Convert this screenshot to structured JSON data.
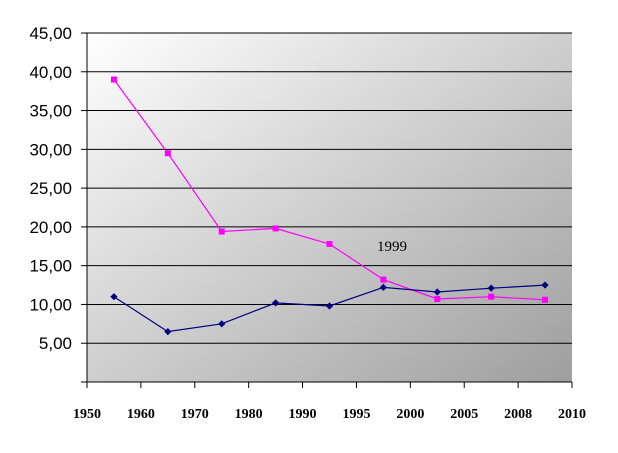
{
  "chart_data": {
    "type": "line",
    "x_tick_labels": [
      "1950",
      "1960",
      "1970",
      "1980",
      "1990",
      "1995",
      "2000",
      "2005",
      "2008",
      "2010"
    ],
    "y_tick_labels": [
      "",
      "5,00",
      "10,00",
      "15,00",
      "20,00",
      "25,00",
      "30,00",
      "35,00",
      "40,00",
      "45,00"
    ],
    "ylim": [
      0,
      45
    ],
    "grid": true,
    "legend": "none",
    "annotation": "1999",
    "series": [
      {
        "color": "#ff00ff",
        "marker": "square",
        "points": [
          {
            "x": 0.5,
            "y": 39.0
          },
          {
            "x": 1.5,
            "y": 29.5
          },
          {
            "x": 2.5,
            "y": 19.4
          },
          {
            "x": 3.5,
            "y": 19.8
          },
          {
            "x": 4.5,
            "y": 17.8
          },
          {
            "x": 5.5,
            "y": 13.2
          },
          {
            "x": 6.5,
            "y": 10.7
          },
          {
            "x": 7.5,
            "y": 11.0
          },
          {
            "x": 8.5,
            "y": 10.6
          }
        ]
      },
      {
        "color": "#000080",
        "marker": "diamond",
        "points": [
          {
            "x": 0.5,
            "y": 11.0
          },
          {
            "x": 1.5,
            "y": 6.5
          },
          {
            "x": 2.5,
            "y": 7.5
          },
          {
            "x": 3.5,
            "y": 10.2
          },
          {
            "x": 4.5,
            "y": 9.8
          },
          {
            "x": 5.5,
            "y": 12.2
          },
          {
            "x": 6.5,
            "y": 11.6
          },
          {
            "x": 7.5,
            "y": 12.1
          },
          {
            "x": 8.5,
            "y": 12.5
          }
        ]
      }
    ]
  }
}
